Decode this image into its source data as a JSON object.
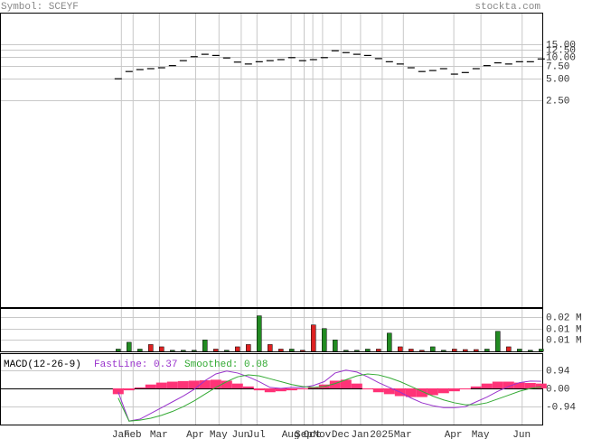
{
  "header": {
    "symbol": "Symbol: SCEYF",
    "site": "stockta.com"
  },
  "chart_data": [
    {
      "type": "line",
      "log": true,
      "color": "#000000",
      "x": [
        0,
        1,
        2,
        3,
        4,
        5,
        6,
        7,
        8,
        9,
        10,
        11,
        12,
        13,
        14,
        15,
        16,
        17,
        18,
        19,
        20,
        21,
        22,
        23,
        24,
        25,
        26,
        27,
        28,
        29,
        30,
        31,
        32,
        33,
        34,
        35,
        36,
        37,
        38,
        39
      ],
      "series": [
        {
          "values": [
            5.0,
            6.3,
            6.7,
            6.9,
            7.1,
            7.6,
            8.9,
            10.1,
            10.9,
            10.5,
            9.7,
            8.5,
            8.0,
            8.6,
            8.9,
            9.2,
            9.8,
            8.9,
            9.2,
            9.8,
            12.2,
            11.5,
            10.9,
            10.5,
            9.5,
            8.6,
            8.0,
            7.1,
            6.3,
            6.5,
            6.9,
            5.8,
            6.1,
            6.9,
            7.6,
            8.3,
            8.0,
            8.6,
            8.6,
            9.4
          ]
        }
      ],
      "xlim": [
        -10.9,
        39.1
      ],
      "ylim": [
        0.0035,
        41
      ],
      "yticks": [
        {
          "value": 15,
          "label": "15.00"
        },
        {
          "value": 12.5,
          "label": "12.50"
        },
        {
          "value": 10,
          "label": "10.00"
        },
        {
          "value": 7.5,
          "label": "7.50"
        },
        {
          "value": 5,
          "label": "5.00"
        },
        {
          "value": 2.5,
          "label": "2.50"
        }
      ],
      "grid": true
    },
    {
      "type": "bar",
      "x": [
        0,
        1,
        2,
        3,
        4,
        5,
        6,
        7,
        8,
        9,
        10,
        11,
        12,
        13,
        14,
        15,
        16,
        17,
        18,
        19,
        20,
        21,
        22,
        23,
        24,
        25,
        26,
        27,
        28,
        29,
        30,
        31,
        32,
        33,
        34,
        35,
        36,
        37,
        38,
        39
      ],
      "series": [
        {
          "values": [
            0.001,
            0.004,
            0.001,
            0.003,
            0.002,
            0.0005,
            0.0005,
            0.0005,
            0.005,
            0.001,
            0.0005,
            0.002,
            0.003,
            0.0156,
            0.003,
            0.001,
            0.001,
            0.0005,
            0.0116,
            0.01,
            0.005,
            0.0005,
            0.0005,
            0.001,
            0.001,
            0.008,
            0.002,
            0.001,
            0.0005,
            0.002,
            0.0005,
            0.001,
            0.0008,
            0.0008,
            0.001,
            0.0088,
            0.002,
            0.001,
            0.0005,
            0.001
          ],
          "colors": [
            "#228b22",
            "#228b22",
            "#228b22",
            "#dd2222",
            "#dd2222",
            "#228b22",
            "#228b22",
            "#228b22",
            "#228b22",
            "#dd2222",
            "#228b22",
            "#dd2222",
            "#dd2222",
            "#228b22",
            "#dd2222",
            "#dd2222",
            "#228b22",
            "#dd2222",
            "#dd2222",
            "#228b22",
            "#228b22",
            "#228b22",
            "#228b22",
            "#228b22",
            "#dd2222",
            "#228b22",
            "#dd2222",
            "#dd2222",
            "#dd2222",
            "#228b22",
            "#228b22",
            "#dd2222",
            "#dd2222",
            "#dd2222",
            "#228b22",
            "#228b22",
            "#dd2222",
            "#228b22",
            "#228b22",
            "#228b22"
          ]
        }
      ],
      "xlim": [
        -10.9,
        39.1
      ],
      "ylim": [
        0,
        0.019
      ],
      "yticks": [
        {
          "value": 0.015,
          "label": "0.02 M"
        },
        {
          "value": 0.01,
          "label": "0.01 M"
        },
        {
          "value": 0.005,
          "label": "0.01 M"
        }
      ],
      "grid": true
    },
    {
      "type": "macd",
      "title": "MACD(12-26-9)",
      "x": [
        0,
        1,
        2,
        3,
        4,
        5,
        6,
        7,
        8,
        9,
        10,
        11,
        12,
        13,
        14,
        15,
        16,
        17,
        18,
        19,
        20,
        21,
        22,
        23,
        24,
        25,
        26,
        27,
        28,
        29,
        30,
        31,
        32,
        33,
        34,
        35,
        36,
        37,
        38,
        39
      ],
      "histogram": {
        "color": "#ff3377",
        "values": [
          -0.3,
          -0.1,
          0.05,
          0.2,
          0.3,
          0.35,
          0.38,
          0.4,
          0.42,
          0.45,
          0.4,
          0.25,
          0.1,
          -0.1,
          -0.2,
          -0.15,
          -0.1,
          -0.05,
          0.05,
          0.2,
          0.4,
          0.45,
          0.25,
          -0.05,
          -0.2,
          -0.3,
          -0.4,
          -0.45,
          -0.45,
          -0.35,
          -0.25,
          -0.15,
          -0.05,
          0.1,
          0.25,
          0.35,
          0.35,
          0.3,
          0.28,
          0.25
        ]
      },
      "series": [
        {
          "name": "FastLine: 0.37",
          "color": "#9933cc",
          "values": [
            -0.2,
            -1.7,
            -1.6,
            -1.3,
            -1.0,
            -0.7,
            -0.4,
            -0.05,
            0.4,
            0.75,
            0.9,
            0.8,
            0.6,
            0.35,
            0.05,
            0.0,
            0.05,
            0.05,
            0.15,
            0.35,
            0.8,
            0.95,
            0.85,
            0.6,
            0.3,
            0.05,
            -0.2,
            -0.5,
            -0.75,
            -0.9,
            -1.0,
            -1.0,
            -0.95,
            -0.7,
            -0.45,
            -0.15,
            0.1,
            0.3,
            0.38,
            0.37
          ]
        },
        {
          "name": "Smoothed: 0.08",
          "color": "#33aa33",
          "values": [
            -0.5,
            -1.7,
            -1.65,
            -1.55,
            -1.4,
            -1.2,
            -0.95,
            -0.65,
            -0.3,
            0.05,
            0.35,
            0.6,
            0.7,
            0.65,
            0.5,
            0.35,
            0.2,
            0.1,
            0.05,
            0.1,
            0.25,
            0.45,
            0.65,
            0.75,
            0.7,
            0.55,
            0.35,
            0.1,
            -0.15,
            -0.4,
            -0.6,
            -0.75,
            -0.85,
            -0.85,
            -0.75,
            -0.55,
            -0.35,
            -0.15,
            0.0,
            0.08
          ]
        }
      ],
      "xlim": [
        -10.9,
        39.1
      ],
      "ylim": [
        -1.88,
        1.83
      ],
      "yticks": [
        0.94,
        {
          "value": 0,
          "label": "0.00"
        },
        -0.94
      ],
      "xticks": [
        {
          "value": 0.25,
          "label": "Jan"
        },
        {
          "value": 1.33,
          "label": "Feb"
        },
        {
          "value": 3.75,
          "label": "Mar"
        },
        {
          "value": 7.1,
          "label": "Apr"
        },
        {
          "value": 9.25,
          "label": "May"
        },
        {
          "value": 11.3,
          "label": "Jun"
        },
        {
          "value": 12.75,
          "label": "Jul"
        },
        {
          "value": 15.9,
          "label": "Aug"
        },
        {
          "value": 17.1,
          "label": "Sep"
        },
        {
          "value": 17.9,
          "label": "Oct"
        },
        {
          "value": 18.8,
          "label": "Nov"
        },
        {
          "value": 20.5,
          "label": "Dec"
        },
        {
          "value": 22.3,
          "label": "Jan"
        },
        {
          "value": 24.3,
          "label": "2025"
        },
        {
          "value": 26.25,
          "label": "Mar"
        },
        {
          "value": 30.9,
          "label": "Apr"
        },
        {
          "value": 33.4,
          "label": "May"
        },
        {
          "value": 37.2,
          "label": "Jun"
        }
      ],
      "grid": true
    }
  ]
}
